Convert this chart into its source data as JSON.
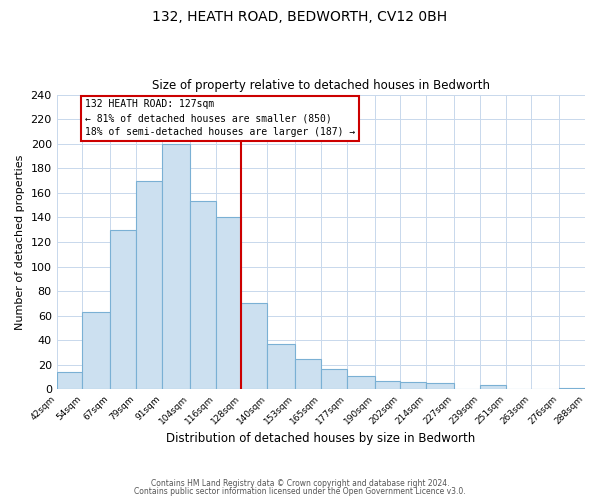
{
  "title": "132, HEATH ROAD, BEDWORTH, CV12 0BH",
  "subtitle": "Size of property relative to detached houses in Bedworth",
  "xlabel": "Distribution of detached houses by size in Bedworth",
  "ylabel": "Number of detached properties",
  "bar_edges": [
    42,
    54,
    67,
    79,
    91,
    104,
    116,
    128,
    140,
    153,
    165,
    177,
    190,
    202,
    214,
    227,
    239,
    251,
    263,
    276,
    288
  ],
  "bar_heights": [
    14,
    63,
    130,
    170,
    200,
    153,
    140,
    70,
    37,
    25,
    17,
    11,
    7,
    6,
    5,
    0,
    4,
    0,
    0,
    1
  ],
  "tick_labels": [
    "42sqm",
    "54sqm",
    "67sqm",
    "79sqm",
    "91sqm",
    "104sqm",
    "116sqm",
    "128sqm",
    "140sqm",
    "153sqm",
    "165sqm",
    "177sqm",
    "190sqm",
    "202sqm",
    "214sqm",
    "227sqm",
    "239sqm",
    "251sqm",
    "263sqm",
    "276sqm",
    "288sqm"
  ],
  "bar_color": "#cce0f0",
  "bar_edge_color": "#7ab0d4",
  "vline_x": 128,
  "vline_color": "#cc0000",
  "annotation_title": "132 HEATH ROAD: 127sqm",
  "annotation_line1": "← 81% of detached houses are smaller (850)",
  "annotation_line2": "18% of semi-detached houses are larger (187) →",
  "annotation_box_color": "#ffffff",
  "annotation_box_edge": "#cc0000",
  "ylim": [
    0,
    240
  ],
  "yticks": [
    0,
    20,
    40,
    60,
    80,
    100,
    120,
    140,
    160,
    180,
    200,
    220,
    240
  ],
  "footer1": "Contains HM Land Registry data © Crown copyright and database right 2024.",
  "footer2": "Contains public sector information licensed under the Open Government Licence v3.0.",
  "background_color": "#ffffff",
  "grid_color": "#c8d8ec"
}
